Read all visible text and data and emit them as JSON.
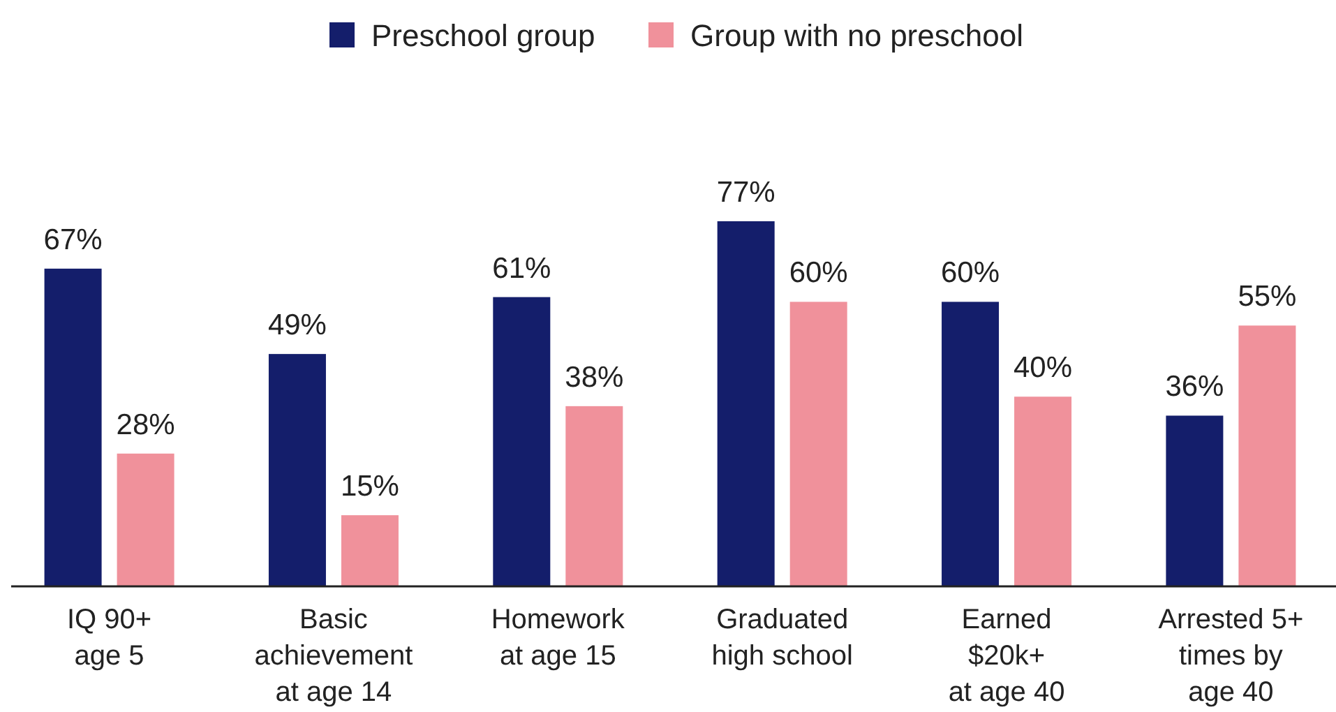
{
  "chart_data": {
    "type": "bar",
    "relative": false,
    "legend": "top",
    "categories": [
      "IQ 90+\nage 5",
      "Basic\nachievement\nat age 14",
      "Homework\nat age 15",
      "Graduated\nhigh school",
      "Earned\n$20k+\nat age 40",
      "Arrested 5+\ntimes by\nage 40"
    ],
    "series": [
      {
        "name": "Preschool group",
        "color": "#141e6b",
        "values": [
          67,
          49,
          61,
          77,
          60,
          36
        ],
        "value_labels": [
          "67%",
          "49%",
          "61%",
          "77%",
          "60%",
          "36%"
        ]
      },
      {
        "name": "Group with no preschool",
        "color": "#f0919b",
        "values": [
          28,
          15,
          38,
          60,
          40,
          55
        ],
        "value_labels": [
          "28%",
          "15%",
          "38%",
          "60%",
          "40%",
          "55%"
        ]
      }
    ]
  }
}
